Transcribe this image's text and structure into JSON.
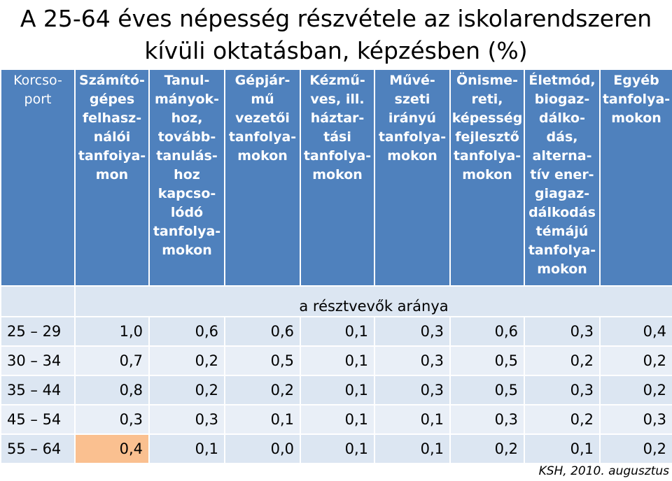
{
  "title": {
    "line1": "A 25-64 éves népesség részvétele az iskolarendszeren",
    "line2": "kívüli oktatásban, képzésben (%)"
  },
  "columns": [
    {
      "lines": [
        "Korcso-",
        "port"
      ]
    },
    {
      "lines": [
        "Számító-",
        "gépes",
        "felhasz-",
        "nálói",
        "tanfoiya-",
        "mon"
      ]
    },
    {
      "lines": [
        "Tanul-",
        "mányok-",
        "hoz,",
        "tovább-",
        "tanulás-",
        "hoz",
        "kapcso-",
        "lódó",
        "tanfolya-",
        "mokon"
      ]
    },
    {
      "lines": [
        "Gépjár-",
        "mű",
        "vezetői",
        "tanfolya-",
        "mokon"
      ]
    },
    {
      "lines": [
        "Kézmű-",
        "ves, ill.",
        "háztar-",
        "tási",
        "tanfolya-",
        "mokon"
      ]
    },
    {
      "lines": [
        "Művé-",
        "szeti",
        "irányú",
        "tanfolya-",
        "mokon"
      ]
    },
    {
      "lines": [
        "Önisme-",
        "reti,",
        "képesség",
        "fejlesztő",
        "tanfolya-",
        "mokon"
      ]
    },
    {
      "lines": [
        "Életmód,",
        "biogaz-",
        "dálko-",
        "dás,",
        "alterna-",
        "tív ener-",
        "giagaz-",
        "dálkodás",
        "témájú",
        "tanfolya-",
        "mokon"
      ]
    },
    {
      "lines": [
        "Egyéb",
        "tanfolya-",
        "mokon"
      ]
    }
  ],
  "subheader": "a résztvevők aránya",
  "rows": [
    {
      "label": "25 – 29",
      "values": [
        "1,0",
        "0,6",
        "0,6",
        "0,1",
        "0,3",
        "0,6",
        "0,3",
        "0,4"
      ]
    },
    {
      "label": "30 – 34",
      "values": [
        "0,7",
        "0,2",
        "0,5",
        "0,1",
        "0,3",
        "0,5",
        "0,2",
        "0,2"
      ]
    },
    {
      "label": "35 – 44",
      "values": [
        "0,8",
        "0,2",
        "0,2",
        "0,1",
        "0,3",
        "0,5",
        "0,3",
        "0,2"
      ]
    },
    {
      "label": "45 – 54",
      "values": [
        "0,3",
        "0,3",
        "0,1",
        "0,1",
        "0,1",
        "0,3",
        "0,2",
        "0,3"
      ]
    },
    {
      "label": "55 – 64",
      "values": [
        "0,4",
        "0,1",
        "0,0",
        "0,1",
        "0,1",
        "0,2",
        "0,1",
        "0,2"
      ]
    }
  ],
  "highlight": {
    "row": 4,
    "col": 0,
    "color": "#fac090"
  },
  "source": "KSH, 2010. augusztus",
  "colors": {
    "header_bg": "#4f81bd",
    "row_bg": "#dce6f2",
    "row_alt_bg": "#e9eff7",
    "highlight": "#fac090"
  }
}
